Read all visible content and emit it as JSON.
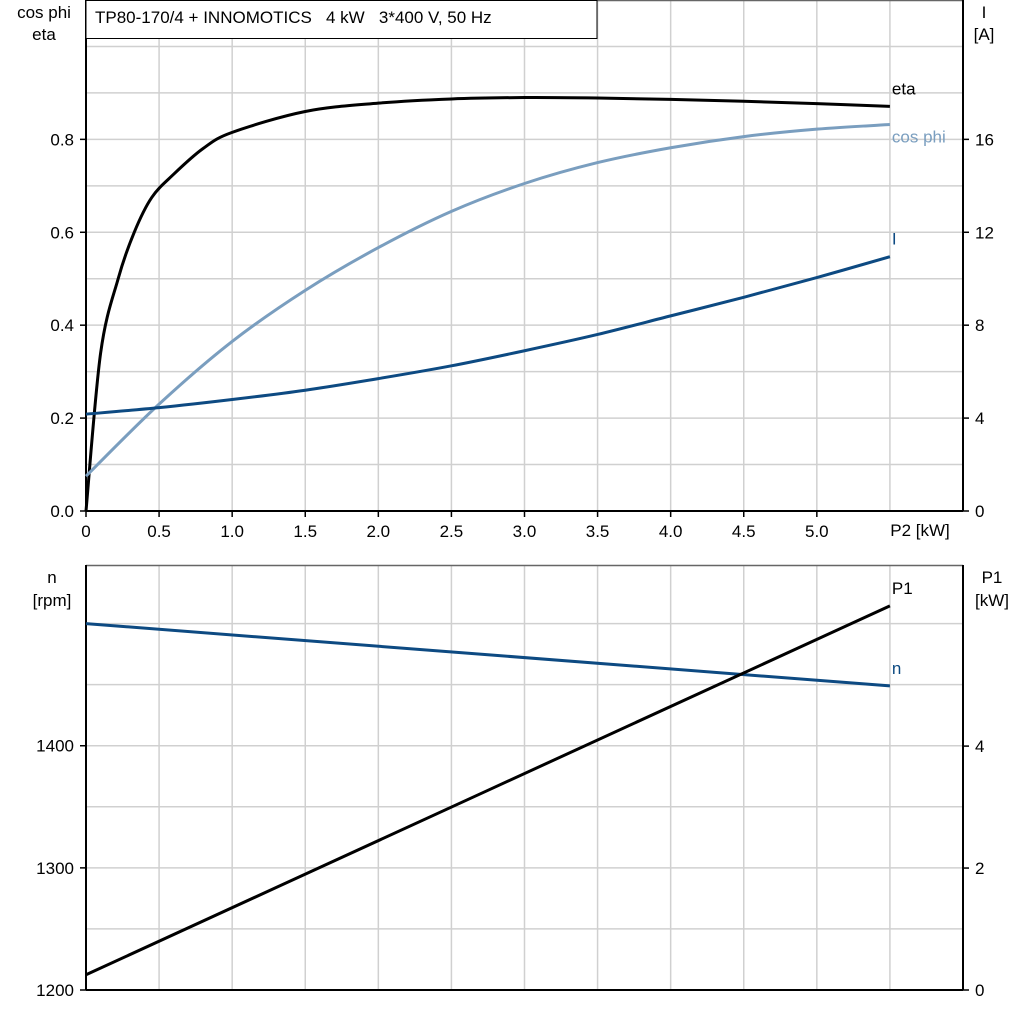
{
  "chart_data": [
    {
      "type": "line",
      "title": "TP80-170/4 + INNOMOTICS   4 kW   3*400 V, 50 Hz",
      "xlabel": "P2 [kW]",
      "ylabel_left": [
        "cos phi",
        "eta"
      ],
      "ylabel_right": [
        "I",
        "[A]"
      ],
      "xlim": [
        0,
        6.0
      ],
      "ylim_left": [
        0,
        1.1
      ],
      "ylim_right": [
        0,
        22
      ],
      "grid": true,
      "x_ticks": [
        "0",
        "0.5",
        "1.0",
        "1.5",
        "2.0",
        "2.5",
        "3.0",
        "3.5",
        "4.0",
        "4.5",
        "5.0"
      ],
      "y_ticks_left": [
        "0.0",
        "0.2",
        "0.4",
        "0.6",
        "0.8"
      ],
      "y_ticks_right": [
        "0",
        "4",
        "8",
        "12",
        "16"
      ],
      "series": [
        {
          "name": "eta",
          "axis": "left",
          "color": "#000000",
          "x": [
            0,
            0.1,
            0.22,
            0.33,
            0.45,
            0.6,
            0.8,
            1.0,
            1.5,
            2.0,
            2.5,
            3.0,
            3.5,
            4.0,
            4.5,
            5.0,
            5.5
          ],
          "y": [
            0,
            0.34,
            0.5,
            0.6,
            0.675,
            0.725,
            0.78,
            0.815,
            0.86,
            0.878,
            0.887,
            0.89,
            0.889,
            0.886,
            0.882,
            0.877,
            0.871
          ]
        },
        {
          "name": "cos phi",
          "axis": "left",
          "color": "#7a9ebf",
          "x": [
            0,
            0.5,
            1.0,
            1.5,
            2.0,
            2.5,
            3.0,
            3.5,
            4.0,
            4.5,
            5.0,
            5.5
          ],
          "y": [
            0.075,
            0.23,
            0.365,
            0.475,
            0.567,
            0.645,
            0.705,
            0.75,
            0.782,
            0.806,
            0.822,
            0.832
          ]
        },
        {
          "name": "I",
          "axis": "right",
          "color": "#0d4a82",
          "x": [
            0,
            0.5,
            1.0,
            1.5,
            2.0,
            2.5,
            3.0,
            3.5,
            4.0,
            4.5,
            5.0,
            5.5
          ],
          "y": [
            4.17,
            4.45,
            4.8,
            5.2,
            5.7,
            6.25,
            6.9,
            7.6,
            8.4,
            9.2,
            10.05,
            10.95
          ]
        }
      ]
    },
    {
      "type": "line",
      "xlim": [
        0,
        6.0
      ],
      "ylabel_left": [
        "n",
        "[rpm]"
      ],
      "ylabel_right": [
        "P1",
        "[kW]"
      ],
      "ylim_left": [
        1200,
        1548
      ],
      "ylim_right": [
        0,
        6.97
      ],
      "grid": true,
      "y_ticks_left": [
        "1200",
        "1300",
        "1400"
      ],
      "y_ticks_right": [
        "0",
        "2",
        "4"
      ],
      "series": [
        {
          "name": "n",
          "axis": "left",
          "color": "#0d4a82",
          "x": [
            0,
            5.5
          ],
          "y": [
            1500,
            1449
          ]
        },
        {
          "name": "P1",
          "axis": "right",
          "color": "#000000",
          "x": [
            0,
            5.5
          ],
          "y": [
            0.25,
            6.3
          ]
        }
      ]
    }
  ]
}
